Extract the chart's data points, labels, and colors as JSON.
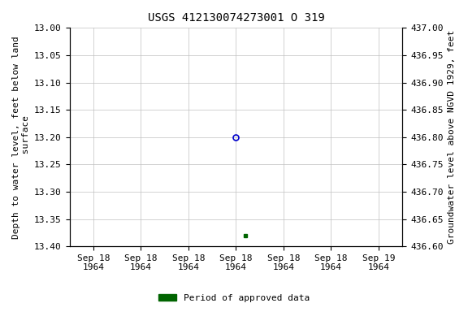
{
  "title": "USGS 412130074273001 O 319",
  "ylabel_left": "Depth to water level, feet below land\n surface",
  "ylabel_right": "Groundwater level above NGVD 1929, feet",
  "ylim_left": [
    13.4,
    13.0
  ],
  "ylim_right": [
    436.6,
    437.0
  ],
  "yticks_left": [
    13.0,
    13.05,
    13.1,
    13.15,
    13.2,
    13.25,
    13.3,
    13.35,
    13.4
  ],
  "yticks_right": [
    436.6,
    436.65,
    436.7,
    436.75,
    436.8,
    436.85,
    436.9,
    436.95,
    437.0
  ],
  "open_circle_value": 13.2,
  "filled_square_value": 13.38,
  "open_circle_color": "#0000cc",
  "filled_square_color": "#006400",
  "background_color": "#ffffff",
  "grid_color": "#c0c0c0",
  "title_fontsize": 10,
  "axis_label_fontsize": 8,
  "tick_fontsize": 8,
  "legend_label": "Period of approved data",
  "legend_color": "#006400",
  "font_family": "DejaVu Sans Mono"
}
